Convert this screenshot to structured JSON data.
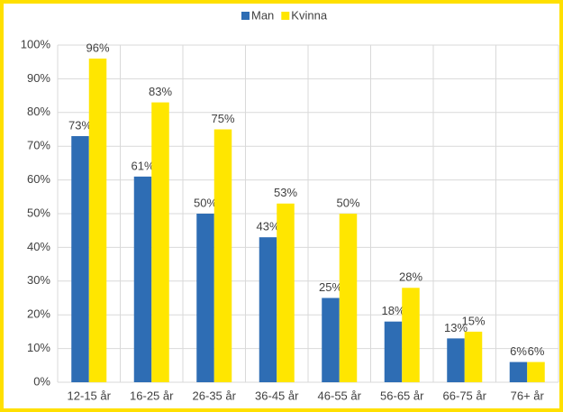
{
  "chart_data": {
    "type": "bar",
    "categories": [
      "12-15 år",
      "16-25 år",
      "26-35 år",
      "36-45 år",
      "46-55 år",
      "56-65 år",
      "66-75 år",
      "76+ år"
    ],
    "series": [
      {
        "name": "Man",
        "color": "#2e6db4",
        "values": [
          73,
          61,
          50,
          43,
          25,
          18,
          13,
          6
        ],
        "value_labels": [
          "73%",
          "61%",
          "50%",
          "43%",
          "25%",
          "18%",
          "13%",
          "6%"
        ]
      },
      {
        "name": "Kvinna",
        "color": "#ffe600",
        "values": [
          96,
          83,
          75,
          53,
          50,
          28,
          15,
          6
        ],
        "value_labels": [
          "96%",
          "83%",
          "75%",
          "53%",
          "50%",
          "28%",
          "15%",
          "6%"
        ]
      }
    ],
    "ylim": [
      0,
      100
    ],
    "yticks": [
      {
        "value": 0,
        "label": "0%"
      },
      {
        "value": 10,
        "label": "10%"
      },
      {
        "value": 20,
        "label": "20%"
      },
      {
        "value": 30,
        "label": "30%"
      },
      {
        "value": 40,
        "label": "40%"
      },
      {
        "value": 50,
        "label": "50%"
      },
      {
        "value": 60,
        "label": "60%"
      },
      {
        "value": 70,
        "label": "70%"
      },
      {
        "value": 80,
        "label": "80%"
      },
      {
        "value": 90,
        "label": "90%"
      },
      {
        "value": 100,
        "label": "100%"
      }
    ],
    "grid": true,
    "legend": "top"
  }
}
